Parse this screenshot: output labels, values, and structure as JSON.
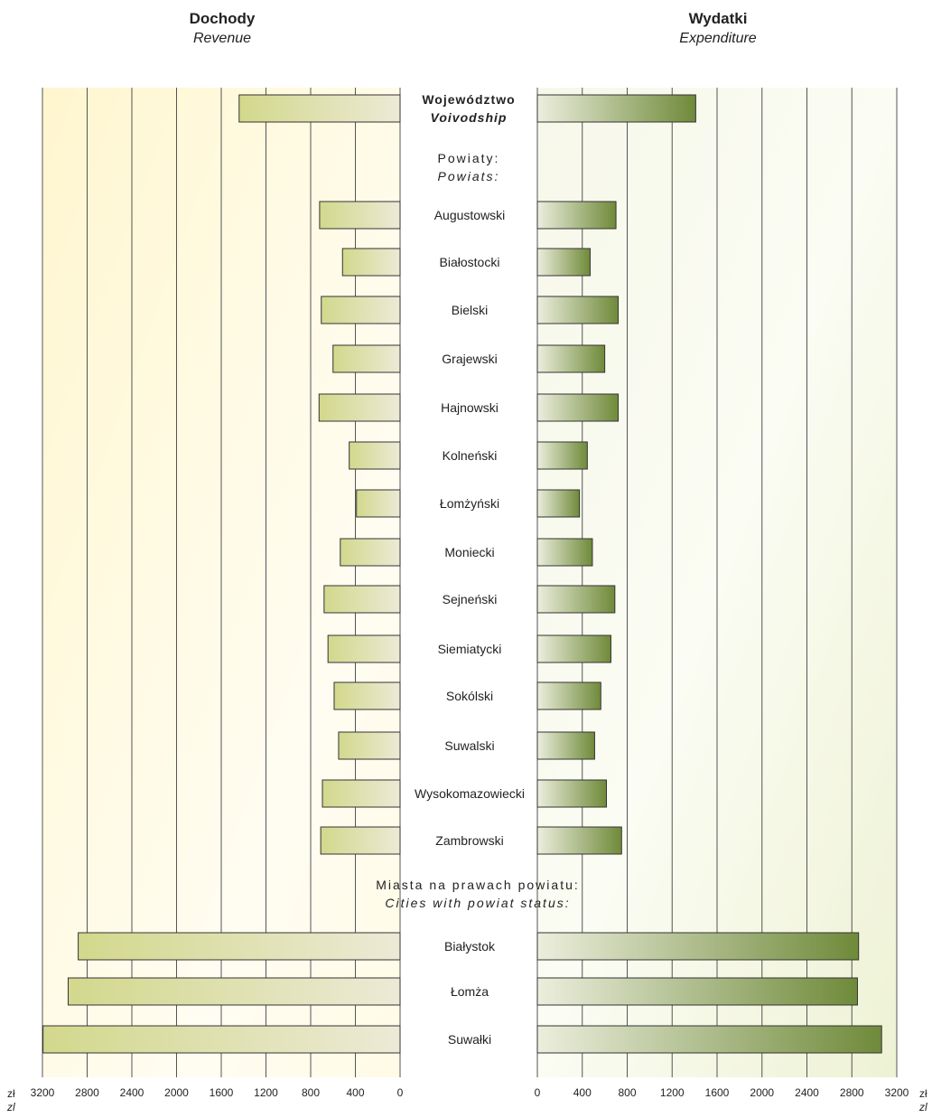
{
  "chart_data": [
    {
      "type": "bar",
      "orientation": "horizontal",
      "direction": "right-to-left",
      "title": "Dochody",
      "subtitle": "Revenue",
      "xlabel": "zł",
      "xlabel_en": "zl",
      "xlim": [
        0,
        3200
      ],
      "xticks": [
        0,
        400,
        800,
        1200,
        1600,
        2000,
        2400,
        2800,
        3200
      ],
      "grid": true,
      "categories": [
        "Województwo",
        "Augustowski",
        "Białostocki",
        "Bielski",
        "Grajewski",
        "Hajnowski",
        "Kolneński",
        "Łomżyński",
        "Moniecki",
        "Sejneński",
        "Siemiatycki",
        "Sokólski",
        "Suwalski",
        "Wysokomazowiecki",
        "Zambrowski",
        "Białystok",
        "Łomża",
        "Suwałki"
      ],
      "values": [
        1440,
        720,
        515,
        705,
        600,
        725,
        455,
        390,
        535,
        680,
        645,
        590,
        550,
        695,
        710,
        2880,
        2970,
        3195
      ]
    },
    {
      "type": "bar",
      "orientation": "horizontal",
      "direction": "left-to-right",
      "title": "Wydatki",
      "subtitle": "Expenditure",
      "xlabel": "zł",
      "xlabel_en": "zl",
      "xlim": [
        0,
        3200
      ],
      "xticks": [
        0,
        400,
        800,
        1200,
        1600,
        2000,
        2400,
        2800,
        3200
      ],
      "grid": true,
      "categories": [
        "Województwo",
        "Augustowski",
        "Białostocki",
        "Bielski",
        "Grajewski",
        "Hajnowski",
        "Kolneński",
        "Łomżyński",
        "Moniecki",
        "Sejneński",
        "Siemiatycki",
        "Sokólski",
        "Suwalski",
        "Wysokomazowiecki",
        "Zambrowski",
        "Białystok",
        "Łomża",
        "Suwałki"
      ],
      "values": [
        1410,
        700,
        470,
        720,
        600,
        720,
        445,
        375,
        490,
        690,
        655,
        565,
        510,
        615,
        750,
        2860,
        2850,
        3065
      ]
    }
  ],
  "headers": {
    "left_title": "Dochody",
    "left_subtitle": "Revenue",
    "right_title": "Wydatki",
    "right_subtitle": "Expenditure"
  },
  "labels": {
    "voivodship": "Województwo",
    "voivodship_en": "Voivodship",
    "powiaty": "Powiaty:",
    "powiaty_en": "Powiats:",
    "miasta": "Miasta na prawach powiatu:",
    "miasta_en": "Cities with powiat status:",
    "unit": "zł",
    "unit_en": "zl"
  },
  "rows": [
    "Augustowski",
    "Białostocki",
    "Bielski",
    "Grajewski",
    "Hajnowski",
    "Kolneński",
    "Łomżyński",
    "Moniecki",
    "Sejneński",
    "Siemiatycki",
    "Sokólski",
    "Suwalski",
    "Wysokomazowiecki",
    "Zambrowski",
    "Białystok",
    "Łomża",
    "Suwałki"
  ],
  "colors": {
    "left_bg": "#fff9d9",
    "right_bg": "#f2f5dc",
    "left_bar_dark": "#d2d88c",
    "left_bar_light": "#ecead6",
    "right_bar_light": "#eceedd",
    "right_bar_dark": "#6f8a3a",
    "grid": "#555555"
  }
}
